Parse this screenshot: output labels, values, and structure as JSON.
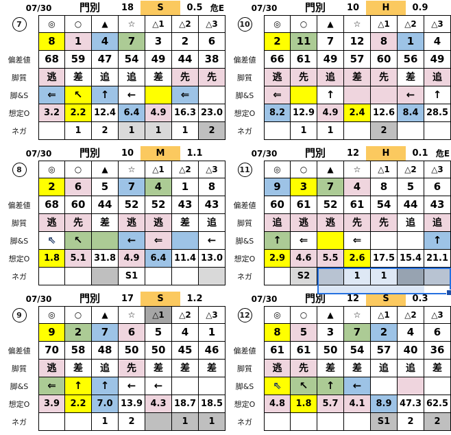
{
  "palette": {
    "yellow": "#FFFF00",
    "pink": "#EFD5DE",
    "blue": "#9DC3E6",
    "green": "#ACCB95",
    "orange": "#FBC95F",
    "g1": "#D9D9D9",
    "g2": "#BFBFBF",
    "g3": "#A6A6A6",
    "selW": "#DEE8F5",
    "selG": "#B8C3D2",
    "selD": "#97A3B1",
    "selBorder": "#2470E0",
    "selHandle": "#1C4FA8",
    "navy": "#1F3864"
  },
  "row_labels": [
    "偏差値",
    "脚質",
    "脚&S",
    "想定O",
    "ネガ"
  ],
  "tables": [
    {
      "num": "7",
      "header": {
        "date": "07/30",
        "track": "門別",
        "count": "18",
        "level": "S",
        "odds": "0.5",
        "danger": "危E"
      },
      "rows": [
        [
          {
            "t": "◎"
          },
          {
            "t": "○"
          },
          {
            "t": "▲"
          },
          {
            "t": "☆"
          },
          {
            "t": "△1"
          },
          {
            "t": "△2"
          },
          {
            "t": "△3"
          }
        ],
        [
          {
            "t": "8",
            "bg": "yellow"
          },
          {
            "t": "1",
            "bg": "pink"
          },
          {
            "t": "4",
            "bg": "blue"
          },
          {
            "t": "7",
            "bg": "green"
          },
          {
            "t": "3"
          },
          {
            "t": "2"
          },
          {
            "t": "6"
          }
        ],
        [
          {
            "t": "68"
          },
          {
            "t": "59"
          },
          {
            "t": "47"
          },
          {
            "t": "54"
          },
          {
            "t": "49"
          },
          {
            "t": "44"
          },
          {
            "t": "38"
          }
        ],
        [
          {
            "t": "逃",
            "bg": "pink"
          },
          {
            "t": "差"
          },
          {
            "t": "追"
          },
          {
            "t": "追"
          },
          {
            "t": "差"
          },
          {
            "t": "先",
            "bg": "pink"
          },
          {
            "t": "先",
            "bg": "pink"
          }
        ],
        [
          {
            "t": "⇐",
            "bg": "blue"
          },
          {
            "t": "↖",
            "bg": "yellow"
          },
          {
            "t": "↑",
            "bg": "blue"
          },
          {
            "t": "←"
          },
          {
            "t": "",
            "bg": "yellow"
          },
          {
            "t": "⇐",
            "bg": "blue"
          },
          {
            "t": ""
          }
        ],
        [
          {
            "t": "3.2",
            "bg": "pink"
          },
          {
            "t": "2.2",
            "bg": "yellow"
          },
          {
            "t": "12.4"
          },
          {
            "t": "6.4",
            "bg": "blue"
          },
          {
            "t": "4.9",
            "bg": "pink"
          },
          {
            "t": "16.3"
          },
          {
            "t": "23.0"
          }
        ],
        [
          {
            "t": ""
          },
          {
            "t": "1"
          },
          {
            "t": "2"
          },
          {
            "t": "1",
            "bg": "g1"
          },
          {
            "t": "1",
            "bg": "g1"
          },
          {
            "t": "1"
          },
          {
            "t": "2",
            "bg": "g2"
          }
        ]
      ]
    },
    {
      "num": "8",
      "header": {
        "date": "07/30",
        "track": "門別",
        "count": "10",
        "level": "M",
        "odds": "1.1",
        "danger": ""
      },
      "rows": [
        [
          {
            "t": "◎"
          },
          {
            "t": "○"
          },
          {
            "t": "▲"
          },
          {
            "t": "☆"
          },
          {
            "t": "△1"
          },
          {
            "t": "△2"
          },
          {
            "t": "△3"
          }
        ],
        [
          {
            "t": "2",
            "bg": "yellow"
          },
          {
            "t": "6",
            "bg": "pink"
          },
          {
            "t": "5"
          },
          {
            "t": "7",
            "bg": "blue"
          },
          {
            "t": "4",
            "bg": "green"
          },
          {
            "t": "1"
          },
          {
            "t": "8"
          }
        ],
        [
          {
            "t": "68"
          },
          {
            "t": "60"
          },
          {
            "t": "44"
          },
          {
            "t": "52"
          },
          {
            "t": "52"
          },
          {
            "t": "43"
          },
          {
            "t": "43"
          }
        ],
        [
          {
            "t": "逃",
            "bg": "pink"
          },
          {
            "t": "先",
            "bg": "pink"
          },
          {
            "t": "差"
          },
          {
            "t": "逃",
            "bg": "pink"
          },
          {
            "t": "逃",
            "bg": "pink"
          },
          {
            "t": "差"
          },
          {
            "t": "追"
          }
        ],
        [
          {
            "t": "⇖",
            "fg": "navy"
          },
          {
            "t": "↖",
            "bg": "green"
          },
          {
            "t": "",
            "bg": "green"
          },
          {
            "t": "←",
            "bg": "blue"
          },
          {
            "t": "⇐",
            "bg": "pink"
          },
          {
            "t": "",
            "bg": "blue"
          },
          {
            "t": "←"
          }
        ],
        [
          {
            "t": "1.8",
            "bg": "yellow"
          },
          {
            "t": "5.1",
            "bg": "pink"
          },
          {
            "t": "31.8"
          },
          {
            "t": "4.9",
            "bg": "pink"
          },
          {
            "t": "6.4",
            "bg": "blue"
          },
          {
            "t": "11.4"
          },
          {
            "t": "13.0"
          }
        ],
        [
          {
            "t": ""
          },
          {
            "t": ""
          },
          {
            "t": "",
            "bg": "g2"
          },
          {
            "t": "S1"
          },
          {
            "t": ""
          },
          {
            "t": ""
          },
          {
            "t": "",
            "bg": "g1"
          }
        ]
      ]
    },
    {
      "num": "9",
      "header": {
        "date": "07/30",
        "track": "門別",
        "count": "17",
        "level": "S",
        "odds": "1.2",
        "danger": ""
      },
      "rows": [
        [
          {
            "t": "◎"
          },
          {
            "t": "○"
          },
          {
            "t": "▲"
          },
          {
            "t": "☆"
          },
          {
            "t": "△1",
            "bg": "g3"
          },
          {
            "t": "△2"
          },
          {
            "t": "△3"
          }
        ],
        [
          {
            "t": "9",
            "bg": "yellow"
          },
          {
            "t": "2",
            "bg": "green"
          },
          {
            "t": "7",
            "bg": "blue"
          },
          {
            "t": "6",
            "bg": "pink"
          },
          {
            "t": "5"
          },
          {
            "t": "4"
          },
          {
            "t": "1"
          }
        ],
        [
          {
            "t": "70"
          },
          {
            "t": "58"
          },
          {
            "t": "48"
          },
          {
            "t": "50"
          },
          {
            "t": "50"
          },
          {
            "t": "45"
          },
          {
            "t": "46"
          }
        ],
        [
          {
            "t": "逃",
            "bg": "pink"
          },
          {
            "t": "差"
          },
          {
            "t": "追"
          },
          {
            "t": "先",
            "bg": "pink"
          },
          {
            "t": "差"
          },
          {
            "t": "差"
          },
          {
            "t": "差"
          }
        ],
        [
          {
            "t": "⇐",
            "bg": "green"
          },
          {
            "t": "↑",
            "bg": "yellow"
          },
          {
            "t": "↑",
            "bg": "blue"
          },
          {
            "t": "←"
          },
          {
            "t": "←"
          },
          {
            "t": ""
          },
          {
            "t": ""
          }
        ],
        [
          {
            "t": "3.9",
            "bg": "pink"
          },
          {
            "t": "2.2",
            "bg": "yellow"
          },
          {
            "t": "7.0",
            "bg": "blue"
          },
          {
            "t": "13.9"
          },
          {
            "t": "4.3",
            "bg": "pink"
          },
          {
            "t": "18.7"
          },
          {
            "t": "18.5"
          }
        ],
        [
          {
            "t": ""
          },
          {
            "t": ""
          },
          {
            "t": "1"
          },
          {
            "t": "2"
          },
          {
            "t": "",
            "bg": "g2"
          },
          {
            "t": "1",
            "bg": "g2"
          },
          {
            "t": "1",
            "bg": "g2"
          }
        ]
      ]
    },
    {
      "num": "10",
      "header": {
        "date": "07/30",
        "track": "門別",
        "count": "10",
        "level": "H",
        "odds": "0.9",
        "danger": ""
      },
      "rows": [
        [
          {
            "t": "◎"
          },
          {
            "t": "○"
          },
          {
            "t": "▲"
          },
          {
            "t": "☆"
          },
          {
            "t": "△1"
          },
          {
            "t": "△2"
          },
          {
            "t": "△3"
          }
        ],
        [
          {
            "t": "2",
            "bg": "yellow"
          },
          {
            "t": "11",
            "bg": "green"
          },
          {
            "t": "7"
          },
          {
            "t": "12"
          },
          {
            "t": "8",
            "bg": "pink"
          },
          {
            "t": "1",
            "bg": "blue"
          },
          {
            "t": "4"
          }
        ],
        [
          {
            "t": "66"
          },
          {
            "t": "61"
          },
          {
            "t": "49"
          },
          {
            "t": "57"
          },
          {
            "t": "60"
          },
          {
            "t": "56"
          },
          {
            "t": "49"
          }
        ],
        [
          {
            "t": "逃",
            "bg": "pink"
          },
          {
            "t": "先",
            "bg": "pink"
          },
          {
            "t": "追",
            "bg": "pink"
          },
          {
            "t": "差",
            "bg": "pink"
          },
          {
            "t": "先",
            "bg": "pink"
          },
          {
            "t": "差"
          },
          {
            "t": "追",
            "bg": "pink"
          }
        ],
        [
          {
            "t": "⇐",
            "bg": "pink"
          },
          {
            "t": "",
            "bg": "yellow"
          },
          {
            "t": "↑"
          },
          {
            "t": "",
            "bg": "pink"
          },
          {
            "t": "",
            "bg": "pink"
          },
          {
            "t": "←",
            "bg": "pink"
          },
          {
            "t": "↑"
          }
        ],
        [
          {
            "t": "8.2",
            "bg": "blue"
          },
          {
            "t": "12.9"
          },
          {
            "t": "4.9",
            "bg": "pink"
          },
          {
            "t": "2.4",
            "bg": "yellow"
          },
          {
            "t": "12.6"
          },
          {
            "t": "8.4",
            "bg": "blue"
          },
          {
            "t": "28.5"
          }
        ],
        [
          {
            "t": ""
          },
          {
            "t": "1"
          },
          {
            "t": "1"
          },
          {
            "t": ""
          },
          {
            "t": "2",
            "bg": "g2"
          },
          {
            "t": ""
          },
          {
            "t": ""
          }
        ]
      ]
    },
    {
      "num": "11",
      "selection": true,
      "header": {
        "date": "07/30",
        "track": "門別",
        "count": "12",
        "level": "H",
        "odds": "0.1",
        "danger": "危E"
      },
      "rows": [
        [
          {
            "t": "◎"
          },
          {
            "t": "○"
          },
          {
            "t": "▲"
          },
          {
            "t": "☆"
          },
          {
            "t": "△1"
          },
          {
            "t": "△2"
          },
          {
            "t": "△3"
          }
        ],
        [
          {
            "t": "9",
            "bg": "blue"
          },
          {
            "t": "3",
            "bg": "yellow"
          },
          {
            "t": "7",
            "bg": "green"
          },
          {
            "t": "4",
            "bg": "pink"
          },
          {
            "t": "8"
          },
          {
            "t": "5"
          },
          {
            "t": "6"
          }
        ],
        [
          {
            "t": "60"
          },
          {
            "t": "61"
          },
          {
            "t": "52"
          },
          {
            "t": "61"
          },
          {
            "t": "54"
          },
          {
            "t": "44"
          },
          {
            "t": "43"
          }
        ],
        [
          {
            "t": "追",
            "bg": "pink"
          },
          {
            "t": "逃",
            "bg": "pink"
          },
          {
            "t": "逃",
            "bg": "pink"
          },
          {
            "t": "先",
            "bg": "pink"
          },
          {
            "t": "先",
            "bg": "pink"
          },
          {
            "t": "追"
          },
          {
            "t": "追",
            "bg": "pink"
          }
        ],
        [
          {
            "t": "↑",
            "bg": "green"
          },
          {
            "t": "⇐"
          },
          {
            "t": "",
            "bg": "yellow"
          },
          {
            "t": "⇐"
          },
          {
            "t": ""
          },
          {
            "t": ""
          },
          {
            "t": "↑",
            "bg": "blue"
          }
        ],
        [
          {
            "t": "2.9",
            "bg": "yellow"
          },
          {
            "t": "4.6",
            "bg": "pink"
          },
          {
            "t": "5.5",
            "bg": "pink"
          },
          {
            "t": "2.6",
            "bg": "yellow"
          },
          {
            "t": "17.5"
          },
          {
            "t": "15.4"
          },
          {
            "t": "21.1"
          }
        ],
        [
          {
            "t": ""
          },
          {
            "t": "S2",
            "bg": "g1"
          },
          {
            "t": "",
            "bg": "selG"
          },
          {
            "t": "1",
            "bg": "selW"
          },
          {
            "t": "1",
            "bg": "selW"
          },
          {
            "t": "",
            "bg": "selD"
          },
          {
            "t": "",
            "bg": "selG"
          }
        ]
      ]
    },
    {
      "num": "12",
      "header": {
        "date": "07/30",
        "track": "門別",
        "count": "12",
        "level": "S",
        "odds": "0.3",
        "danger": ""
      },
      "rows": [
        [
          {
            "t": "◎"
          },
          {
            "t": "○"
          },
          {
            "t": "▲"
          },
          {
            "t": "☆"
          },
          {
            "t": "△1"
          },
          {
            "t": "△2"
          },
          {
            "t": "△3"
          }
        ],
        [
          {
            "t": "8",
            "bg": "yellow"
          },
          {
            "t": "5",
            "bg": "pink"
          },
          {
            "t": "3"
          },
          {
            "t": "7",
            "bg": "green"
          },
          {
            "t": "2",
            "bg": "blue"
          },
          {
            "t": "4"
          },
          {
            "t": "6"
          }
        ],
        [
          {
            "t": "61"
          },
          {
            "t": "61"
          },
          {
            "t": "50"
          },
          {
            "t": "54"
          },
          {
            "t": "57"
          },
          {
            "t": "40"
          },
          {
            "t": "36"
          }
        ],
        [
          {
            "t": "逃",
            "bg": "pink"
          },
          {
            "t": "先",
            "bg": "pink"
          },
          {
            "t": "差"
          },
          {
            "t": "差"
          },
          {
            "t": "追"
          },
          {
            "t": "追"
          },
          {
            "t": "差"
          }
        ],
        [
          {
            "t": "⇖",
            "bg": "yellow",
            "fg": "navy"
          },
          {
            "t": "↖",
            "bg": "green"
          },
          {
            "t": "↑",
            "bg": "green"
          },
          {
            "t": "←",
            "bg": "blue"
          },
          {
            "t": ""
          },
          {
            "t": "",
            "bg": "pink"
          },
          {
            "t": ""
          }
        ],
        [
          {
            "t": "4.8",
            "bg": "pink"
          },
          {
            "t": "1.8",
            "bg": "yellow"
          },
          {
            "t": "5.7",
            "bg": "pink"
          },
          {
            "t": "4.1",
            "bg": "pink"
          },
          {
            "t": "8.9",
            "bg": "blue"
          },
          {
            "t": "47.3"
          },
          {
            "t": "62.5"
          }
        ],
        [
          {
            "t": ""
          },
          {
            "t": ""
          },
          {
            "t": ""
          },
          {
            "t": ""
          },
          {
            "t": "S1",
            "bg": "g2"
          },
          {
            "t": "2"
          },
          {
            "t": "2",
            "bg": "g2"
          }
        ]
      ]
    }
  ]
}
